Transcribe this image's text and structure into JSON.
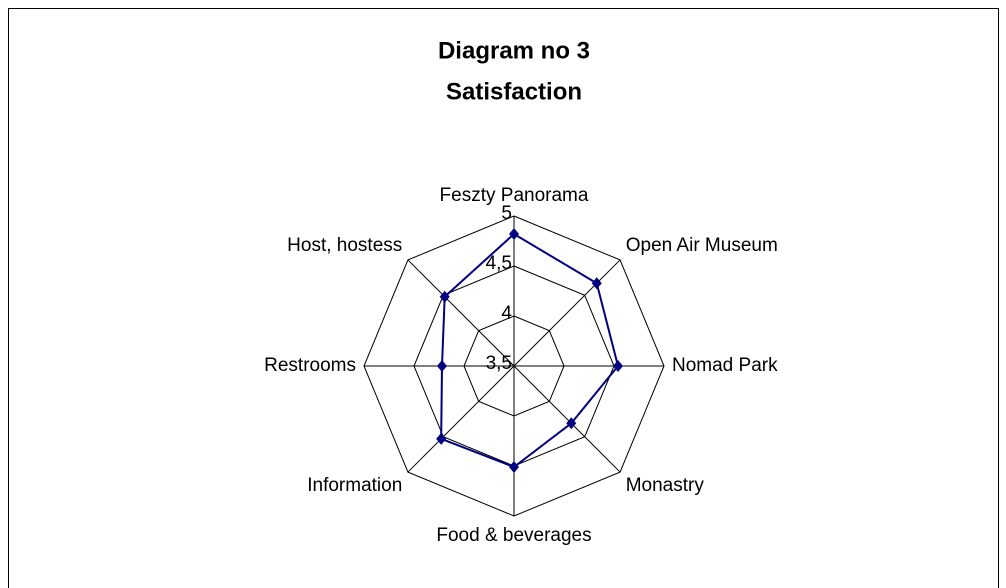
{
  "chart_data": {
    "type": "radar",
    "title": "Diagram no 3",
    "subtitle": "Satisfaction",
    "categories": [
      "Feszty Panorama",
      "Open Air Museum",
      "Nomad Park",
      "Monastry",
      "Food & beverages",
      "Information",
      "Restrooms",
      "Host, hostess"
    ],
    "series": [
      {
        "color": "#000080",
        "values": [
          4.82,
          4.67,
          4.54,
          4.31,
          4.51,
          4.53,
          4.22,
          4.48
        ]
      }
    ],
    "ylim": [
      3.5,
      5
    ],
    "yticks": [
      {
        "value": 3.5,
        "label": "3,5"
      },
      4,
      {
        "value": 4.5,
        "label": "4,5"
      },
      5
    ],
    "grid": true
  }
}
